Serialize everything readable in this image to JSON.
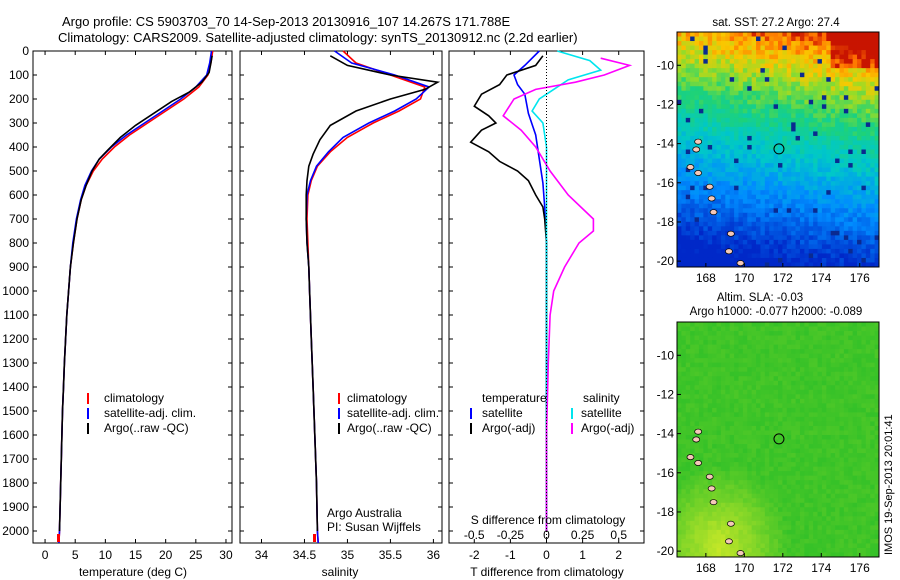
{
  "header": {
    "title_line1": "Argo profile: CS 5903703_70 14-Sep-2013 20130916_107 14.267S 171.788E",
    "title_line2": "Climatology: CARS2009. Satellite-adjusted climatology: synTS_20130912.nc (2.2d earlier)"
  },
  "credits": {
    "org": "Argo Australia",
    "pi": "PI: Susan Wijffels"
  },
  "timestamp": "IMOS 19-Sep-2013 20:01:41",
  "colors": {
    "climatology": "#ff0000",
    "satellite": "#0000ff",
    "argo": "#000000",
    "salinity_sat": "#00e5ee",
    "salinity_argo": "#ff00ff"
  },
  "chart_data": [
    {
      "type": "line",
      "xlabel": "temperature (deg C)",
      "xlim": [
        -2,
        31
      ],
      "ylim": [
        0,
        2050
      ],
      "x_ticks": [
        0,
        5,
        10,
        15,
        20,
        25,
        30
      ],
      "y_ticks": [
        0,
        100,
        200,
        300,
        400,
        500,
        600,
        700,
        800,
        900,
        1000,
        1100,
        1200,
        1300,
        1400,
        1500,
        1600,
        1700,
        1800,
        1900,
        2000
      ],
      "legend": [
        "climatology",
        "satellite-adj. clim.",
        "Argo(..raw -QC)"
      ],
      "series": [
        {
          "name": "climatology",
          "color": "#ff0000",
          "points": [
            [
              27.8,
              0
            ],
            [
              27.5,
              50
            ],
            [
              27,
              100
            ],
            [
              25.5,
              150
            ],
            [
              23,
              200
            ],
            [
              20,
              250
            ],
            [
              17,
              300
            ],
            [
              14,
              350
            ],
            [
              11.5,
              400
            ],
            [
              9.5,
              450
            ],
            [
              8,
              500
            ],
            [
              6.8,
              560
            ],
            [
              6,
              620
            ],
            [
              5.3,
              700
            ],
            [
              4.7,
              800
            ],
            [
              4.2,
              900
            ],
            [
              3.9,
              1000
            ],
            [
              3.6,
              1100
            ],
            [
              3.4,
              1200
            ],
            [
              3.2,
              1300
            ],
            [
              3.05,
              1400
            ],
            [
              2.9,
              1500
            ],
            [
              2.8,
              1600
            ],
            [
              2.7,
              1700
            ],
            [
              2.6,
              1800
            ],
            [
              2.5,
              1900
            ],
            [
              2.4,
              2000
            ],
            [
              2.3,
              2050
            ]
          ]
        },
        {
          "name": "satellite-adj. clim.",
          "color": "#0000ff",
          "points": [
            [
              27.6,
              0
            ],
            [
              27.3,
              50
            ],
            [
              26.8,
              100
            ],
            [
              25,
              150
            ],
            [
              22.5,
              200
            ],
            [
              19.5,
              250
            ],
            [
              16.5,
              300
            ],
            [
              13.5,
              350
            ],
            [
              11,
              400
            ],
            [
              9,
              450
            ],
            [
              7.7,
              500
            ],
            [
              6.6,
              560
            ],
            [
              5.9,
              620
            ],
            [
              5.2,
              700
            ],
            [
              4.6,
              800
            ],
            [
              4.2,
              900
            ],
            [
              3.9,
              1000
            ],
            [
              3.6,
              1100
            ],
            [
              3.4,
              1200
            ],
            [
              3.2,
              1300
            ],
            [
              3.05,
              1400
            ],
            [
              2.9,
              1500
            ],
            [
              2.8,
              1600
            ],
            [
              2.7,
              1700
            ],
            [
              2.6,
              1800
            ],
            [
              2.5,
              1900
            ],
            [
              2.4,
              2000
            ],
            [
              2.3,
              2050
            ]
          ]
        },
        {
          "name": "Argo(..raw -QC)",
          "color": "#000000",
          "points": [
            [
              27.7,
              20
            ],
            [
              27.5,
              50
            ],
            [
              27.2,
              90
            ],
            [
              26,
              130
            ],
            [
              24,
              170
            ],
            [
              21,
              210
            ],
            [
              18,
              260
            ],
            [
              15,
              310
            ],
            [
              12.5,
              360
            ],
            [
              10.5,
              410
            ],
            [
              9,
              450
            ],
            [
              7.8,
              500
            ],
            [
              6.8,
              560
            ],
            [
              6,
              620
            ],
            [
              5.3,
              700
            ],
            [
              4.7,
              800
            ],
            [
              4.2,
              900
            ],
            [
              3.9,
              1000
            ],
            [
              3.6,
              1100
            ],
            [
              3.4,
              1200
            ],
            [
              3.2,
              1300
            ],
            [
              3.05,
              1400
            ],
            [
              2.9,
              1500
            ],
            [
              2.8,
              1600
            ],
            [
              2.7,
              1700
            ],
            [
              2.6,
              1800
            ],
            [
              2.5,
              1900
            ],
            [
              2.4,
              2000
            ]
          ]
        }
      ]
    },
    {
      "type": "line",
      "xlabel": "salinity",
      "xlim": [
        33.75,
        36.1
      ],
      "ylim": [
        0,
        2050
      ],
      "x_ticks": [
        34,
        34.5,
        35,
        35.5,
        36
      ],
      "legend": [
        "climatology",
        "satellite-adj. clim.",
        "Argo(..raw -QC)"
      ],
      "series": [
        {
          "name": "climatology",
          "color": "#ff0000",
          "points": [
            [
              34.95,
              0
            ],
            [
              35.1,
              50
            ],
            [
              35.5,
              100
            ],
            [
              35.9,
              150
            ],
            [
              35.85,
              200
            ],
            [
              35.6,
              250
            ],
            [
              35.3,
              300
            ],
            [
              35.0,
              360
            ],
            [
              34.8,
              420
            ],
            [
              34.65,
              480
            ],
            [
              34.58,
              540
            ],
            [
              34.54,
              600
            ],
            [
              34.53,
              700
            ],
            [
              34.54,
              800
            ],
            [
              34.55,
              900
            ],
            [
              34.56,
              1000
            ],
            [
              34.58,
              1200
            ],
            [
              34.6,
              1400
            ],
            [
              34.62,
              1600
            ],
            [
              34.64,
              1800
            ],
            [
              34.65,
              2000
            ],
            [
              34.66,
              2050
            ]
          ]
        },
        {
          "name": "satellite-adj. clim.",
          "color": "#0000ff",
          "points": [
            [
              34.85,
              0
            ],
            [
              35.05,
              50
            ],
            [
              35.55,
              100
            ],
            [
              35.95,
              150
            ],
            [
              35.8,
              200
            ],
            [
              35.55,
              250
            ],
            [
              35.25,
              300
            ],
            [
              34.95,
              360
            ],
            [
              34.78,
              420
            ],
            [
              34.64,
              480
            ],
            [
              34.57,
              540
            ],
            [
              34.53,
              600
            ],
            [
              34.52,
              700
            ],
            [
              34.53,
              800
            ],
            [
              34.55,
              900
            ],
            [
              34.56,
              1000
            ],
            [
              34.58,
              1200
            ],
            [
              34.6,
              1400
            ],
            [
              34.62,
              1600
            ],
            [
              34.64,
              1800
            ],
            [
              34.65,
              2000
            ],
            [
              34.66,
              2050
            ]
          ]
        },
        {
          "name": "Argo(..raw -QC)",
          "color": "#000000",
          "points": [
            [
              34.8,
              20
            ],
            [
              35.0,
              60
            ],
            [
              35.5,
              100
            ],
            [
              36.05,
              130
            ],
            [
              35.9,
              160
            ],
            [
              35.5,
              200
            ],
            [
              35.1,
              250
            ],
            [
              34.8,
              310
            ],
            [
              34.68,
              370
            ],
            [
              34.6,
              430
            ],
            [
              34.55,
              480
            ],
            [
              34.53,
              540
            ],
            [
              34.52,
              600
            ],
            [
              34.52,
              700
            ],
            [
              34.53,
              800
            ],
            [
              34.55,
              900
            ],
            [
              34.56,
              1000
            ],
            [
              34.58,
              1200
            ],
            [
              34.6,
              1400
            ],
            [
              34.62,
              1600
            ],
            [
              34.64,
              1800
            ],
            [
              34.65,
              2000
            ]
          ]
        }
      ]
    },
    {
      "type": "line",
      "xlabel": "T difference from climatology",
      "xlabel_top": "S difference from climatology",
      "xlim": [
        -2.7,
        2.7
      ],
      "ylim": [
        0,
        2050
      ],
      "x_ticks": [
        -2,
        -1,
        0,
        1,
        2
      ],
      "x_ticks_top": [
        "-0.5",
        "-0.25",
        "0",
        "0.25",
        "0.5"
      ],
      "legend_t_title": "temperature",
      "legend_s_title": "salinity",
      "legend_t": [
        "satellite",
        "Argo(-adj)"
      ],
      "legend_s": [
        "satellite",
        "Argo(-adj)"
      ],
      "series": [
        {
          "name": "satellite",
          "color": "#0000ff",
          "points": [
            [
              -0.2,
              0
            ],
            [
              -0.6,
              60
            ],
            [
              -0.9,
              100
            ],
            [
              -0.8,
              140
            ],
            [
              -0.6,
              180
            ],
            [
              -0.5,
              260
            ],
            [
              -0.3,
              350
            ],
            [
              -0.2,
              450
            ],
            [
              -0.1,
              550
            ],
            [
              -0.05,
              650
            ],
            [
              0,
              800
            ],
            [
              0,
              1000
            ],
            [
              0,
              1500
            ],
            [
              0,
              2000
            ]
          ]
        },
        {
          "name": "Argo(-adj)",
          "color": "#000000",
          "points": [
            [
              -0.1,
              20
            ],
            [
              -0.3,
              60
            ],
            [
              -1.1,
              100
            ],
            [
              -1.3,
              140
            ],
            [
              -1.8,
              180
            ],
            [
              -2.0,
              230
            ],
            [
              -1.6,
              270
            ],
            [
              -1.4,
              300
            ],
            [
              -1.8,
              330
            ],
            [
              -2.1,
              380
            ],
            [
              -1.6,
              420
            ],
            [
              -1.3,
              460
            ],
            [
              -0.8,
              500
            ],
            [
              -0.5,
              540
            ],
            [
              -0.3,
              600
            ],
            [
              -0.1,
              650
            ],
            [
              -0.05,
              700
            ],
            [
              0,
              800
            ],
            [
              0,
              1000
            ],
            [
              0,
              1500
            ],
            [
              0,
              2000
            ]
          ]
        },
        {
          "name": "satellite",
          "color": "#00e5ee",
          "points": [
            [
              0.3,
              0
            ],
            [
              1.2,
              40
            ],
            [
              1.5,
              80
            ],
            [
              0.6,
              120
            ],
            [
              0.2,
              160
            ],
            [
              -0.2,
              200
            ],
            [
              -0.4,
              250
            ],
            [
              -0.1,
              300
            ],
            [
              0.0,
              400
            ],
            [
              0.0,
              600
            ],
            [
              0.0,
              800
            ],
            [
              0.0,
              1000
            ],
            [
              0.0,
              1500
            ],
            [
              0.0,
              2000
            ]
          ]
        },
        {
          "name": "Argo(-adj)",
          "color": "#ff00ff",
          "points": [
            [
              1.5,
              30
            ],
            [
              2.3,
              60
            ],
            [
              1.6,
              100
            ],
            [
              0.8,
              130
            ],
            [
              -0.3,
              160
            ],
            [
              -0.9,
              200
            ],
            [
              -1.2,
              270
            ],
            [
              -0.7,
              330
            ],
            [
              -0.3,
              400
            ],
            [
              0.1,
              500
            ],
            [
              0.6,
              600
            ],
            [
              1.3,
              700
            ],
            [
              1.3,
              750
            ],
            [
              0.9,
              800
            ],
            [
              0.5,
              900
            ],
            [
              0.2,
              1000
            ],
            [
              0.1,
              1100
            ],
            [
              0.05,
              1300
            ],
            [
              0,
              1600
            ],
            [
              0,
              2000
            ]
          ]
        }
      ]
    },
    {
      "type": "heatmap",
      "title": "sat. SST: 27.2  Argo: 27.4",
      "xlim": [
        166.5,
        177
      ],
      "ylim": [
        -20.3,
        -8.3
      ],
      "x_ticks": [
        168,
        170,
        172,
        174,
        176
      ],
      "y_ticks": [
        -10,
        -12,
        -14,
        -16,
        -18,
        -20
      ],
      "marker": [
        171.8,
        -14.27
      ]
    },
    {
      "type": "heatmap",
      "title_line1": "Altim. SLA: -0.03",
      "title_line2": "Argo h1000: -0.077 h2000: -0.089",
      "xlim": [
        166.5,
        177
      ],
      "ylim": [
        -20.3,
        -8.3
      ],
      "x_ticks": [
        168,
        170,
        172,
        174,
        176
      ],
      "y_ticks": [
        -10,
        -12,
        -14,
        -16,
        -18,
        -20
      ],
      "marker": [
        171.8,
        -14.27
      ]
    }
  ]
}
